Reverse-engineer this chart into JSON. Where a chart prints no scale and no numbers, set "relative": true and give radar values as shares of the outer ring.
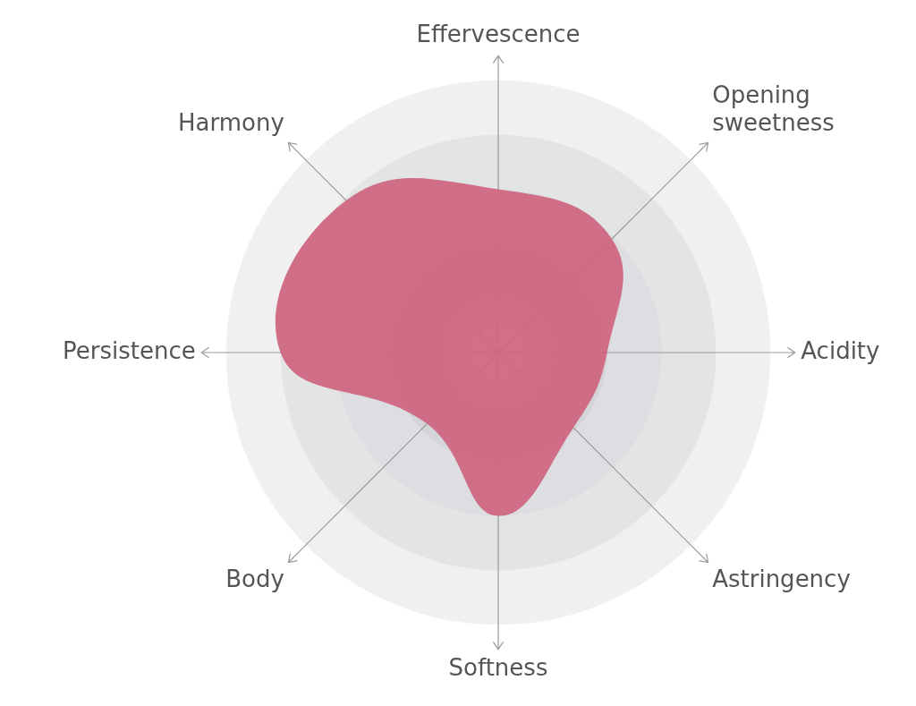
{
  "chart_data": {
    "type": "radar",
    "relative": true,
    "categories": [
      "Effervescence",
      "Opening sweetness",
      "Acidity",
      "Astringency",
      "Softness",
      "Body",
      "Persistence",
      "Harmony"
    ],
    "series": [
      {
        "color": "#cf6580",
        "values": [
          0.6,
          0.59,
          0.4,
          0.39,
          0.6,
          0.37,
          0.8,
          0.79
        ]
      }
    ],
    "grid": true,
    "legend": false,
    "marker": "none"
  }
}
